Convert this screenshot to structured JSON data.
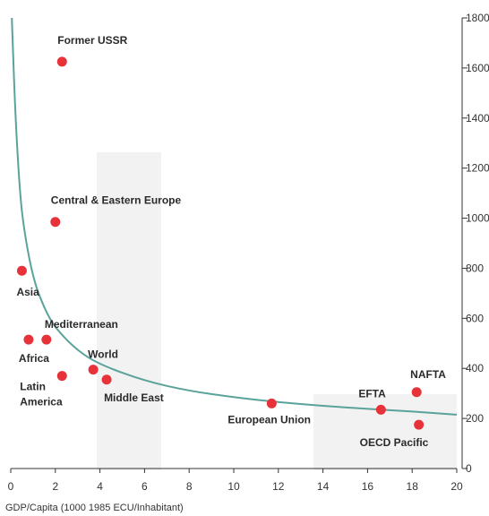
{
  "chart_data": {
    "type": "scatter",
    "xlabel": "GDP/Capita (1000 1985 ECU/Inhabitant)",
    "ylabel": "",
    "xlim": [
      0,
      20
    ],
    "ylim": [
      0,
      1800
    ],
    "x_ticks": [
      0,
      2,
      4,
      6,
      8,
      10,
      12,
      14,
      16,
      18,
      20
    ],
    "y_ticks": [
      0,
      200,
      400,
      600,
      800,
      1000,
      1200,
      1400,
      1600,
      1800
    ],
    "y_axis_position": "right",
    "grid": false,
    "colors": {
      "points": "#e8323a",
      "curve": "#5aa39a",
      "axis": "#333333",
      "panel": "#f2f2f2"
    },
    "points": [
      {
        "label": "Former USSR",
        "x": 2.3,
        "y": 1625
      },
      {
        "label": "Central & Eastern Europe",
        "x": 2.0,
        "y": 985
      },
      {
        "label": "Asia",
        "x": 0.5,
        "y": 790
      },
      {
        "label": "Mediterranean",
        "x": 1.6,
        "y": 515
      },
      {
        "label": "Africa",
        "x": 0.8,
        "y": 515
      },
      {
        "label": "World",
        "x": 3.7,
        "y": 395
      },
      {
        "label": "Latin America",
        "x": 2.3,
        "y": 370
      },
      {
        "label": "Middle East",
        "x": 4.3,
        "y": 355
      },
      {
        "label": "European Union",
        "x": 11.7,
        "y": 260
      },
      {
        "label": "EFTA",
        "x": 16.6,
        "y": 235
      },
      {
        "label": "NAFTA",
        "x": 18.2,
        "y": 305
      },
      {
        "label": "OECD Pacific",
        "x": 18.3,
        "y": 175
      }
    ],
    "trend_curve": [
      {
        "x": 0.05,
        "y": 1800
      },
      {
        "x": 0.2,
        "y": 1420
      },
      {
        "x": 0.4,
        "y": 1110
      },
      {
        "x": 0.6,
        "y": 950
      },
      {
        "x": 1.0,
        "y": 760
      },
      {
        "x": 1.5,
        "y": 640
      },
      {
        "x": 2.0,
        "y": 560
      },
      {
        "x": 3.0,
        "y": 470
      },
      {
        "x": 4.0,
        "y": 415
      },
      {
        "x": 6.0,
        "y": 350
      },
      {
        "x": 8.0,
        "y": 310
      },
      {
        "x": 10.0,
        "y": 285
      },
      {
        "x": 12.0,
        "y": 265
      },
      {
        "x": 14.0,
        "y": 250
      },
      {
        "x": 16.0,
        "y": 238
      },
      {
        "x": 18.0,
        "y": 228
      },
      {
        "x": 20.0,
        "y": 215
      }
    ]
  }
}
